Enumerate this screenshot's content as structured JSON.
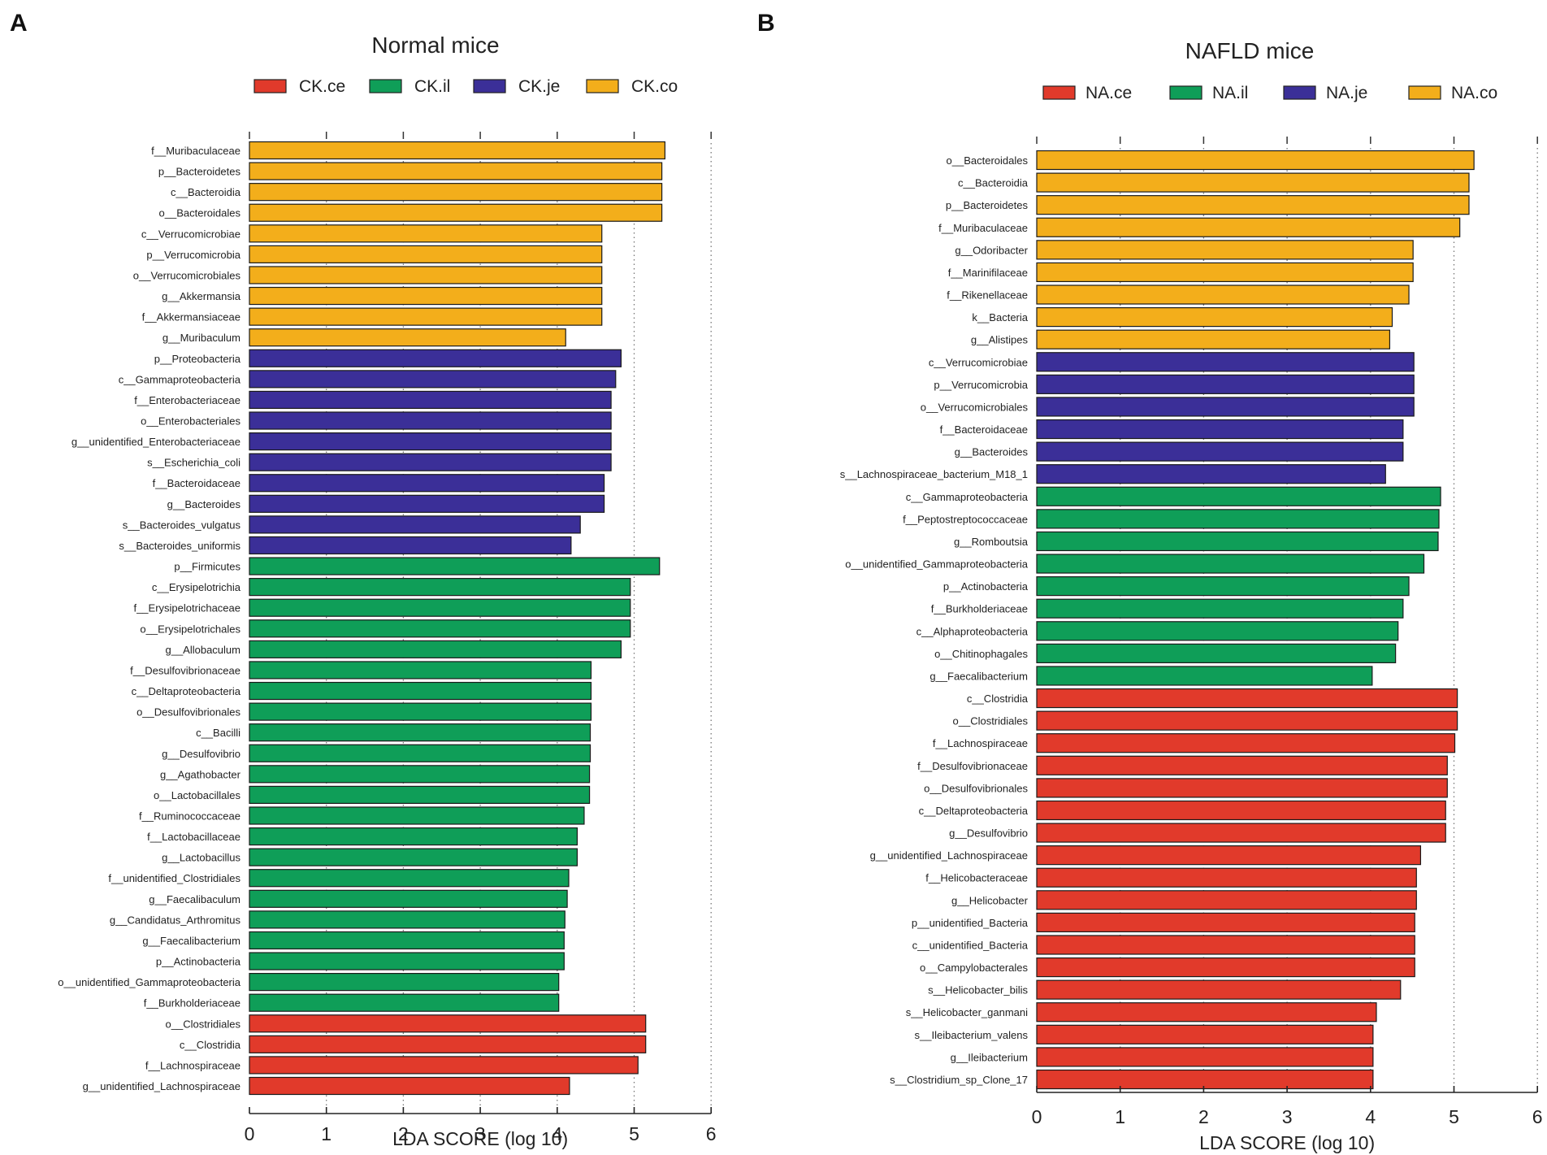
{
  "panel_labels": [
    "A",
    "B"
  ],
  "chart_data": [
    {
      "type": "bar",
      "orientation": "horizontal",
      "title": "Normal mice",
      "xlabel": "LDA SCORE (log 10)",
      "xlim": [
        0,
        6
      ],
      "xticks": [
        0,
        1,
        2,
        3,
        4,
        5,
        6
      ],
      "legend": [
        {
          "label": "CK.ce",
          "color": "#e13a2b"
        },
        {
          "label": "CK.il",
          "color": "#0f9e58"
        },
        {
          "label": "CK.je",
          "color": "#3b2f98"
        },
        {
          "label": "CK.co",
          "color": "#f3ae1b"
        }
      ],
      "bars": [
        {
          "label": "f__Muribaculaceae",
          "value": 5.4,
          "group": "CK.co"
        },
        {
          "label": "p__Bacteroidetes",
          "value": 5.36,
          "group": "CK.co"
        },
        {
          "label": "c__Bacteroidia",
          "value": 5.36,
          "group": "CK.co"
        },
        {
          "label": "o__Bacteroidales",
          "value": 5.36,
          "group": "CK.co"
        },
        {
          "label": "c__Verrucomicrobiae",
          "value": 4.58,
          "group": "CK.co"
        },
        {
          "label": "p__Verrucomicrobia",
          "value": 4.58,
          "group": "CK.co"
        },
        {
          "label": "o__Verrucomicrobiales",
          "value": 4.58,
          "group": "CK.co"
        },
        {
          "label": "g__Akkermansia",
          "value": 4.58,
          "group": "CK.co"
        },
        {
          "label": "f__Akkermansiaceae",
          "value": 4.58,
          "group": "CK.co"
        },
        {
          "label": "g__Muribaculum",
          "value": 4.11,
          "group": "CK.co"
        },
        {
          "label": "p__Proteobacteria",
          "value": 4.83,
          "group": "CK.je"
        },
        {
          "label": "c__Gammaproteobacteria",
          "value": 4.76,
          "group": "CK.je"
        },
        {
          "label": "f__Enterobacteriaceae",
          "value": 4.7,
          "group": "CK.je"
        },
        {
          "label": "o__Enterobacteriales",
          "value": 4.7,
          "group": "CK.je"
        },
        {
          "label": "g__unidentified_Enterobacteriaceae",
          "value": 4.7,
          "group": "CK.je"
        },
        {
          "label": "s__Escherichia_coli",
          "value": 4.7,
          "group": "CK.je"
        },
        {
          "label": "f__Bacteroidaceae",
          "value": 4.61,
          "group": "CK.je"
        },
        {
          "label": "g__Bacteroides",
          "value": 4.61,
          "group": "CK.je"
        },
        {
          "label": "s__Bacteroides_vulgatus",
          "value": 4.3,
          "group": "CK.je"
        },
        {
          "label": "s__Bacteroides_uniformis",
          "value": 4.18,
          "group": "CK.je"
        },
        {
          "label": "p__Firmicutes",
          "value": 5.33,
          "group": "CK.il"
        },
        {
          "label": "c__Erysipelotrichia",
          "value": 4.95,
          "group": "CK.il"
        },
        {
          "label": "f__Erysipelotrichaceae",
          "value": 4.95,
          "group": "CK.il"
        },
        {
          "label": "o__Erysipelotrichales",
          "value": 4.95,
          "group": "CK.il"
        },
        {
          "label": "g__Allobaculum",
          "value": 4.83,
          "group": "CK.il"
        },
        {
          "label": "f__Desulfovibrionaceae",
          "value": 4.44,
          "group": "CK.il"
        },
        {
          "label": "c__Deltaproteobacteria",
          "value": 4.44,
          "group": "CK.il"
        },
        {
          "label": "o__Desulfovibrionales",
          "value": 4.44,
          "group": "CK.il"
        },
        {
          "label": "c__Bacilli",
          "value": 4.43,
          "group": "CK.il"
        },
        {
          "label": "g__Desulfovibrio",
          "value": 4.43,
          "group": "CK.il"
        },
        {
          "label": "g__Agathobacter",
          "value": 4.42,
          "group": "CK.il"
        },
        {
          "label": "o__Lactobacillales",
          "value": 4.42,
          "group": "CK.il"
        },
        {
          "label": "f__Ruminococcaceae",
          "value": 4.35,
          "group": "CK.il"
        },
        {
          "label": "f__Lactobacillaceae",
          "value": 4.26,
          "group": "CK.il"
        },
        {
          "label": "g__Lactobacillus",
          "value": 4.26,
          "group": "CK.il"
        },
        {
          "label": "f__unidentified_Clostridiales",
          "value": 4.15,
          "group": "CK.il"
        },
        {
          "label": "g__Faecalibaculum",
          "value": 4.13,
          "group": "CK.il"
        },
        {
          "label": "g__Candidatus_Arthromitus",
          "value": 4.1,
          "group": "CK.il"
        },
        {
          "label": "g__Faecalibacterium",
          "value": 4.09,
          "group": "CK.il"
        },
        {
          "label": "p__Actinobacteria",
          "value": 4.09,
          "group": "CK.il"
        },
        {
          "label": "o__unidentified_Gammaproteobacteria",
          "value": 4.02,
          "group": "CK.il"
        },
        {
          "label": "f__Burkholderiaceae",
          "value": 4.02,
          "group": "CK.il"
        },
        {
          "label": "o__Clostridiales",
          "value": 5.15,
          "group": "CK.ce"
        },
        {
          "label": "c__Clostridia",
          "value": 5.15,
          "group": "CK.ce"
        },
        {
          "label": "f__Lachnospiraceae",
          "value": 5.05,
          "group": "CK.ce"
        },
        {
          "label": "g__unidentified_Lachnospiraceae",
          "value": 4.16,
          "group": "CK.ce"
        }
      ]
    },
    {
      "type": "bar",
      "orientation": "horizontal",
      "title": "NAFLD mice",
      "xlabel": "LDA SCORE (log 10)",
      "xlim": [
        0,
        6
      ],
      "xticks": [
        0,
        1,
        2,
        3,
        4,
        5,
        6
      ],
      "legend": [
        {
          "label": "NA.ce",
          "color": "#e13a2b"
        },
        {
          "label": "NA.il",
          "color": "#0f9e58"
        },
        {
          "label": "NA.je",
          "color": "#3b2f98"
        },
        {
          "label": "NA.co",
          "color": "#f3ae1b"
        }
      ],
      "bars": [
        {
          "label": "o__Bacteroidales",
          "value": 5.24,
          "group": "NA.co"
        },
        {
          "label": "c__Bacteroidia",
          "value": 5.18,
          "group": "NA.co"
        },
        {
          "label": "p__Bacteroidetes",
          "value": 5.18,
          "group": "NA.co"
        },
        {
          "label": "f__Muribaculaceae",
          "value": 5.07,
          "group": "NA.co"
        },
        {
          "label": "g__Odoribacter",
          "value": 4.51,
          "group": "NA.co"
        },
        {
          "label": "f__Marinifilaceae",
          "value": 4.51,
          "group": "NA.co"
        },
        {
          "label": "f__Rikenellaceae",
          "value": 4.46,
          "group": "NA.co"
        },
        {
          "label": "k__Bacteria",
          "value": 4.26,
          "group": "NA.co"
        },
        {
          "label": "g__Alistipes",
          "value": 4.23,
          "group": "NA.co"
        },
        {
          "label": "c__Verrucomicrobiae",
          "value": 4.52,
          "group": "NA.je"
        },
        {
          "label": "p__Verrucomicrobia",
          "value": 4.52,
          "group": "NA.je"
        },
        {
          "label": "o__Verrucomicrobiales",
          "value": 4.52,
          "group": "NA.je"
        },
        {
          "label": "f__Bacteroidaceae",
          "value": 4.39,
          "group": "NA.je"
        },
        {
          "label": "g__Bacteroides",
          "value": 4.39,
          "group": "NA.je"
        },
        {
          "label": "s__Lachnospiraceae_bacterium_M18_1",
          "value": 4.18,
          "group": "NA.je"
        },
        {
          "label": "c__Gammaproteobacteria",
          "value": 4.84,
          "group": "NA.il"
        },
        {
          "label": "f__Peptostreptococcaceae",
          "value": 4.82,
          "group": "NA.il"
        },
        {
          "label": "g__Romboutsia",
          "value": 4.81,
          "group": "NA.il"
        },
        {
          "label": "o__unidentified_Gammaproteobacteria",
          "value": 4.64,
          "group": "NA.il"
        },
        {
          "label": "p__Actinobacteria",
          "value": 4.46,
          "group": "NA.il"
        },
        {
          "label": "f__Burkholderiaceae",
          "value": 4.39,
          "group": "NA.il"
        },
        {
          "label": "c__Alphaproteobacteria",
          "value": 4.33,
          "group": "NA.il"
        },
        {
          "label": "o__Chitinophagales",
          "value": 4.3,
          "group": "NA.il"
        },
        {
          "label": "g__Faecalibacterium",
          "value": 4.02,
          "group": "NA.il"
        },
        {
          "label": "c__Clostridia",
          "value": 5.04,
          "group": "NA.ce"
        },
        {
          "label": "o__Clostridiales",
          "value": 5.04,
          "group": "NA.ce"
        },
        {
          "label": "f__Lachnospiraceae",
          "value": 5.01,
          "group": "NA.ce"
        },
        {
          "label": "f__Desulfovibrionaceae",
          "value": 4.92,
          "group": "NA.ce"
        },
        {
          "label": "o__Desulfovibrionales",
          "value": 4.92,
          "group": "NA.ce"
        },
        {
          "label": "c__Deltaproteobacteria",
          "value": 4.9,
          "group": "NA.ce"
        },
        {
          "label": "g__Desulfovibrio",
          "value": 4.9,
          "group": "NA.ce"
        },
        {
          "label": "g__unidentified_Lachnospiraceae",
          "value": 4.6,
          "group": "NA.ce"
        },
        {
          "label": "f__Helicobacteraceae",
          "value": 4.55,
          "group": "NA.ce"
        },
        {
          "label": "g__Helicobacter",
          "value": 4.55,
          "group": "NA.ce"
        },
        {
          "label": "p__unidentified_Bacteria",
          "value": 4.53,
          "group": "NA.ce"
        },
        {
          "label": "c__unidentified_Bacteria",
          "value": 4.53,
          "group": "NA.ce"
        },
        {
          "label": "o__Campylobacterales",
          "value": 4.53,
          "group": "NA.ce"
        },
        {
          "label": "s__Helicobacter_bilis",
          "value": 4.36,
          "group": "NA.ce"
        },
        {
          "label": "s__Helicobacter_ganmani",
          "value": 4.07,
          "group": "NA.ce"
        },
        {
          "label": "s__Ileibacterium_valens",
          "value": 4.03,
          "group": "NA.ce"
        },
        {
          "label": "g__Ileibacterium",
          "value": 4.03,
          "group": "NA.ce"
        },
        {
          "label": "s__Clostridium_sp_Clone_17",
          "value": 4.03,
          "group": "NA.ce"
        }
      ]
    }
  ]
}
